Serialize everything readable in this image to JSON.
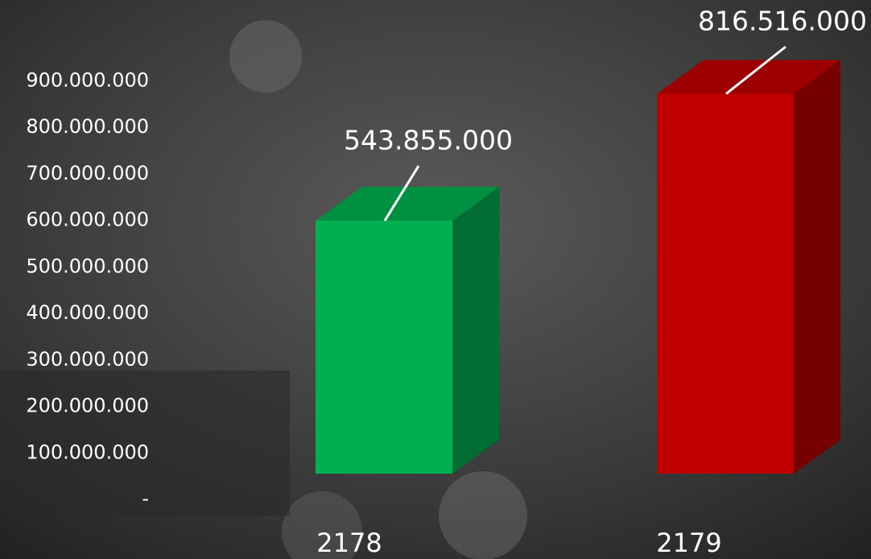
{
  "chart_data": {
    "type": "bar3d",
    "categories": [
      "2178",
      "2179"
    ],
    "series": [
      {
        "colors": [
          "#00b050",
          "#c00000"
        ],
        "values": [
          543855000,
          816516000
        ],
        "value_labels": [
          "543.855.000",
          "816.516.000"
        ]
      }
    ],
    "ylim": [
      0,
      900000000
    ],
    "yticks": [
      {
        "value": 0,
        "label": "-"
      },
      {
        "value": 100000000,
        "label": "100.000.000"
      },
      {
        "value": 200000000,
        "label": "200.000.000"
      },
      {
        "value": 300000000,
        "label": "300.000.000"
      },
      {
        "value": 400000000,
        "label": "400.000.000"
      },
      {
        "value": 500000000,
        "label": "500.000.000"
      },
      {
        "value": 600000000,
        "label": "600.000.000"
      },
      {
        "value": 700000000,
        "label": "700.000.000"
      },
      {
        "value": 800000000,
        "label": "800.000.000"
      },
      {
        "value": 900000000,
        "label": "900.000.000"
      }
    ],
    "grid": false
  }
}
